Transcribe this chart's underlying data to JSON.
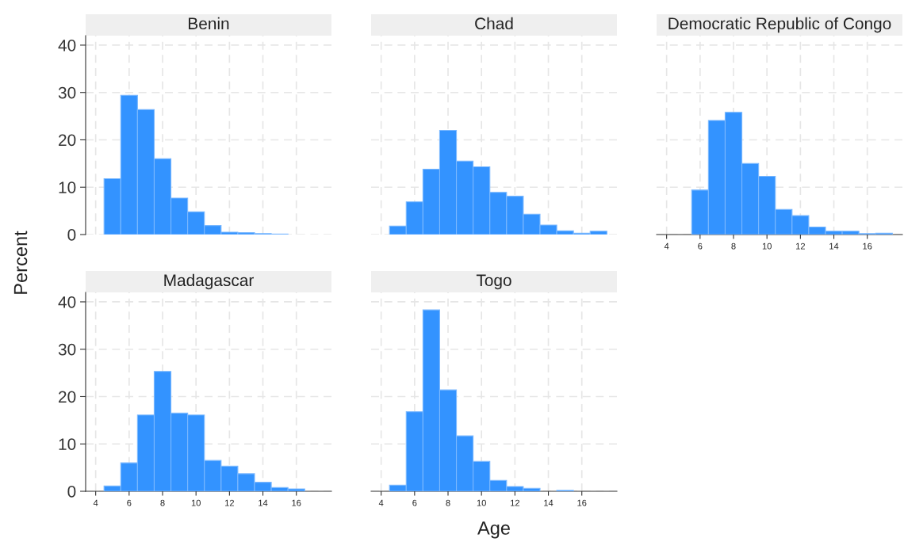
{
  "chart_data": [
    {
      "type": "histogram",
      "title": "Benin",
      "ylabel": "Percent",
      "bins": [
        4.5,
        5.5,
        6.5,
        7.5,
        8.5,
        9.5,
        10.5,
        11.5,
        12.5,
        13.5,
        14.5,
        15.5,
        16.5,
        17.5
      ],
      "values": [
        11.8,
        29.4,
        26.4,
        16.0,
        7.7,
        4.8,
        1.9,
        0.5,
        0.4,
        0.2,
        0.1,
        null,
        null
      ],
      "color": "#3393ff",
      "xlim": [
        3.4,
        18.1
      ],
      "ylim": [
        0,
        42
      ],
      "xticks": [
        4,
        6,
        8,
        10,
        12,
        14,
        16
      ],
      "yticks": [
        0,
        10,
        20,
        30,
        40
      ],
      "grid": true,
      "tick_labels": "y"
    },
    {
      "type": "histogram",
      "title": "Chad",
      "bins": [
        4.5,
        5.5,
        6.5,
        7.5,
        8.5,
        9.5,
        10.5,
        11.5,
        12.5,
        13.5,
        14.5,
        15.5,
        16.5,
        17.5
      ],
      "values": [
        1.8,
        6.9,
        13.8,
        22.0,
        15.5,
        14.3,
        8.9,
        8.1,
        4.3,
        2.0,
        0.8,
        0.3,
        0.7
      ],
      "color": "#3393ff",
      "xlim": [
        3.4,
        18.1
      ],
      "ylim": [
        0,
        42
      ],
      "xticks": [
        4,
        6,
        8,
        10,
        12,
        14,
        16
      ],
      "yticks": [
        0,
        10,
        20,
        30,
        40
      ],
      "grid": true,
      "tick_labels": false
    },
    {
      "type": "histogram",
      "title": "Democratic Republic of Congo",
      "bins": [
        4.5,
        5.5,
        6.5,
        7.5,
        8.5,
        9.5,
        10.5,
        11.5,
        12.5,
        13.5,
        14.5,
        15.5,
        16.5,
        17.5
      ],
      "values": [
        null,
        9.4,
        24.1,
        25.8,
        15.0,
        12.3,
        5.3,
        4.0,
        1.6,
        0.7,
        0.7,
        0.2,
        0.3
      ],
      "color": "#3393ff",
      "xlim": [
        3.4,
        18.1
      ],
      "ylim": [
        0,
        42
      ],
      "xticks": [
        4,
        6,
        8,
        10,
        12,
        14,
        16
      ],
      "yticks": [
        0,
        10,
        20,
        30,
        40
      ],
      "grid": true,
      "tick_labels": "x"
    },
    {
      "type": "histogram",
      "title": "Madagascar",
      "bins": [
        4.5,
        5.5,
        6.5,
        7.5,
        8.5,
        9.5,
        10.5,
        11.5,
        12.5,
        13.5,
        14.5,
        15.5,
        16.5,
        17.5
      ],
      "values": [
        1.1,
        6.0,
        16.1,
        25.3,
        16.5,
        16.1,
        6.5,
        5.3,
        3.7,
        1.9,
        0.8,
        0.5,
        null
      ],
      "color": "#3393ff",
      "xlim": [
        3.4,
        18.1
      ],
      "ylim": [
        0,
        42
      ],
      "xticks": [
        4,
        6,
        8,
        10,
        12,
        14,
        16
      ],
      "yticks": [
        0,
        10,
        20,
        30,
        40
      ],
      "grid": true
    },
    {
      "type": "histogram",
      "title": "Togo",
      "xlabel": "Age",
      "bins": [
        4.5,
        5.5,
        6.5,
        7.5,
        8.5,
        9.5,
        10.5,
        11.5,
        12.5,
        13.5,
        14.5,
        15.5,
        16.5,
        17.5
      ],
      "values": [
        1.3,
        16.8,
        38.3,
        21.4,
        11.7,
        6.3,
        2.3,
        1.0,
        0.6,
        null,
        0.2,
        null,
        null
      ],
      "color": "#3393ff",
      "xlim": [
        3.4,
        18.1
      ],
      "ylim": [
        0,
        42
      ],
      "xticks": [
        4,
        6,
        8,
        10,
        12,
        14,
        16
      ],
      "yticks": [
        0,
        10,
        20,
        30,
        40
      ],
      "grid": true,
      "tick_labels": "x"
    }
  ]
}
